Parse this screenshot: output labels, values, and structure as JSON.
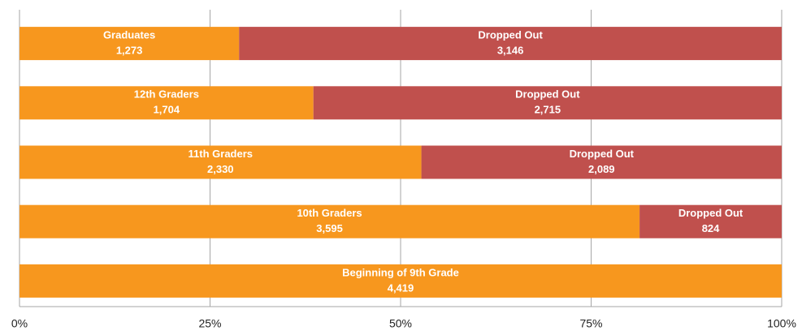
{
  "chart_data": {
    "type": "bar",
    "orientation": "horizontal",
    "stack": "percent",
    "categories": [
      "Graduates",
      "12th Graders",
      "11th Graders",
      "10th Graders",
      "Beginning of 9th Grade"
    ],
    "series": [
      {
        "color": "#f7971e",
        "values": [
          1273,
          1704,
          2330,
          3595,
          4419
        ],
        "value_labels": [
          "1,273",
          "1,704",
          "2,330",
          "3,595",
          "4,419"
        ]
      },
      {
        "name": "Dropped Out",
        "color": "#c0504d",
        "values": [
          3146,
          2715,
          2089,
          824,
          null
        ],
        "value_labels": [
          "3,146",
          "2,715",
          "2,089",
          "824",
          null
        ]
      }
    ],
    "xlim": [
      0,
      100
    ],
    "xticks": [
      {
        "value": 0,
        "label": "0%"
      },
      {
        "value": 25,
        "label": "25%"
      },
      {
        "value": 50,
        "label": "50%"
      },
      {
        "value": 75,
        "label": "75%"
      },
      {
        "value": 100,
        "label": "100%"
      }
    ],
    "grid": true
  }
}
